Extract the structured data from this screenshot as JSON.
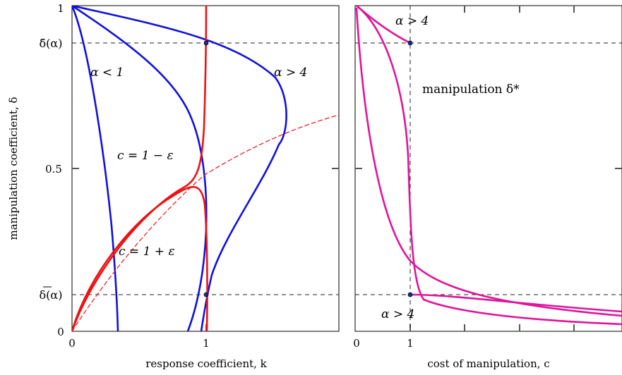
{
  "chart_data": [
    {
      "type": "line",
      "xlabel": "response coefficient, k",
      "ylabel": "manipulation coefficient, δ",
      "xlim": [
        0,
        2
      ],
      "ylim": [
        0,
        1
      ],
      "x_ticks": [
        "0",
        "1"
      ],
      "y_ticks": [
        "0",
        "0.5",
        "1"
      ],
      "y_ref_labels": {
        "upper": "δ̄(α)",
        "lower": "δ(α)"
      },
      "reference_lines": {
        "upper_delta": 0.9,
        "lower_delta": 0.1
      },
      "annotations": [
        "α < 1",
        "α > 4",
        "c = 1 − ε",
        "c = 1 + ε"
      ],
      "colors": {
        "alpha_curves": "#1010e0",
        "c_curves": "#ee1111",
        "dashed": "#ee1111",
        "grid": "#555555"
      },
      "series": [
        {
          "color": "blue",
          "points": [
            [
              0,
              1
            ],
            [
              0.03,
              0.9
            ],
            [
              0.1,
              0.75
            ],
            [
              0.18,
              0.55
            ],
            [
              0.25,
              0.35
            ],
            [
              0.3,
              0.18
            ],
            [
              0.33,
              0.05
            ],
            [
              0.34,
              0
            ]
          ]
        },
        {
          "color": "blue",
          "points": [
            [
              0,
              1
            ],
            [
              0.2,
              0.94
            ],
            [
              0.45,
              0.84
            ],
            [
              0.7,
              0.72
            ],
            [
              0.88,
              0.6
            ],
            [
              0.98,
              0.45
            ],
            [
              1.0,
              0.3
            ],
            [
              0.98,
              0.15
            ],
            [
              0.94,
              0.07
            ],
            [
              0.91,
              0
            ]
          ]
        },
        {
          "color": "blue",
          "points": [
            [
              0,
              1
            ],
            [
              0.5,
              0.96
            ],
            [
              1.0,
              0.9
            ],
            [
              1.3,
              0.83
            ],
            [
              1.5,
              0.76
            ],
            [
              1.56,
              0.69
            ],
            [
              1.5,
              0.58
            ],
            [
              1.35,
              0.45
            ],
            [
              1.15,
              0.28
            ],
            [
              1.0,
              0.1
            ],
            [
              0.93,
              0
            ]
          ]
        },
        {
          "color": "red",
          "points": [
            [
              0,
              0
            ],
            [
              0.05,
              0.08
            ],
            [
              0.15,
              0.18
            ],
            [
              0.3,
              0.28
            ],
            [
              0.5,
              0.36
            ],
            [
              0.7,
              0.4
            ],
            [
              0.85,
              0.44
            ],
            [
              0.93,
              0.5
            ],
            [
              0.96,
              0.6
            ],
            [
              0.98,
              0.8
            ],
            [
              0.99,
              1
            ]
          ]
        },
        {
          "color": "red",
          "points": [
            [
              0,
              0
            ],
            [
              0.05,
              0.08
            ],
            [
              0.15,
              0.17
            ],
            [
              0.3,
              0.26
            ],
            [
              0.5,
              0.33
            ],
            [
              0.7,
              0.38
            ],
            [
              0.85,
              0.44
            ],
            [
              0.95,
              0.43
            ],
            [
              0.99,
              0.35
            ],
            [
              1.0,
              0.2
            ],
            [
              1.0,
              0
            ]
          ]
        },
        {
          "color": "red",
          "style": "dashed",
          "points": [
            [
              0,
              0
            ],
            [
              0.2,
              0.19
            ],
            [
              0.4,
              0.3
            ],
            [
              0.6,
              0.39
            ],
            [
              0.8,
              0.46
            ],
            [
              1.0,
              0.52
            ],
            [
              1.2,
              0.58
            ],
            [
              1.5,
              0.63
            ],
            [
              1.8,
              0.67
            ],
            [
              2.0,
              0.69
            ]
          ]
        }
      ]
    },
    {
      "type": "line",
      "xlabel": "cost of manipulation, c",
      "ylabel": "",
      "xlim": [
        0,
        5
      ],
      "ylim": [
        0,
        1
      ],
      "x_ticks": [
        "0",
        "1"
      ],
      "reference_lines": {
        "upper_delta": 0.9,
        "lower_delta": 0.1,
        "c": 1
      },
      "annotations": [
        "α > 4",
        "manipulation δ*",
        "α > 4"
      ],
      "colors": {
        "curves": "#e0149a",
        "grid": "#555555"
      },
      "series": [
        {
          "color": "magenta",
          "points": [
            [
              0,
              1
            ],
            [
              0.3,
              0.96
            ],
            [
              0.6,
              0.93
            ],
            [
              1.0,
              0.9
            ]
          ]
        },
        {
          "color": "magenta",
          "points": [
            [
              0,
              1
            ],
            [
              0.3,
              0.9
            ],
            [
              0.6,
              0.8
            ],
            [
              0.85,
              0.65
            ],
            [
              0.95,
              0.45
            ],
            [
              1.0,
              0.3
            ],
            [
              1.1,
              0.2
            ],
            [
              1.5,
              0.14
            ],
            [
              2.5,
              0.1
            ],
            [
              3.5,
              0.07
            ],
            [
              5,
              0.05
            ]
          ]
        },
        {
          "color": "magenta",
          "points": [
            [
              0,
              0.98
            ],
            [
              0.2,
              0.7
            ],
            [
              0.5,
              0.45
            ],
            [
              0.8,
              0.3
            ],
            [
              1.0,
              0.22
            ],
            [
              1.5,
              0.12
            ],
            [
              2.5,
              0.06
            ],
            [
              3.5,
              0.04
            ],
            [
              5,
              0.03
            ]
          ]
        },
        {
          "color": "magenta",
          "points": [
            [
              1.0,
              0.1
            ],
            [
              1.5,
              0.08
            ],
            [
              2.5,
              0.06
            ],
            [
              3.5,
              0.05
            ],
            [
              5,
              0.04
            ]
          ]
        }
      ]
    }
  ]
}
